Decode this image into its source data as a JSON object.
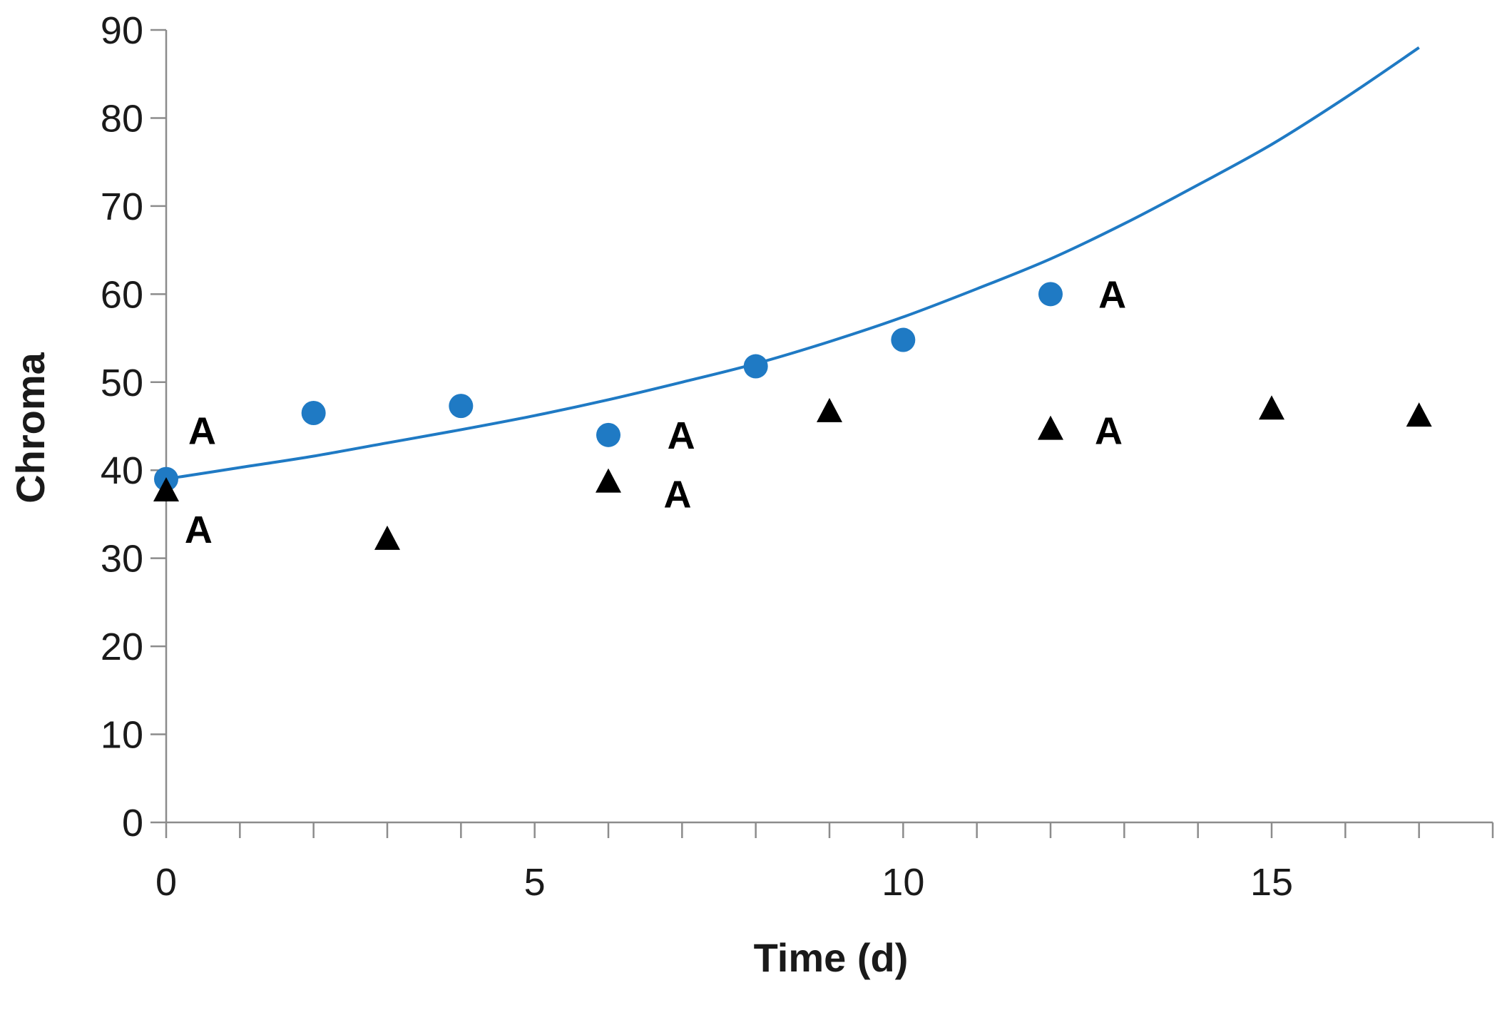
{
  "chart_data": {
    "type": "scatter",
    "title": "",
    "xlabel": "Time (d)",
    "ylabel": "Chroma",
    "xlim": [
      0,
      18
    ],
    "ylim": [
      0,
      90
    ],
    "x_ticks": [
      0,
      5,
      10,
      15
    ],
    "x_minor_step": 1,
    "y_ticks": [
      0,
      10,
      20,
      30,
      40,
      50,
      60,
      70,
      80,
      90
    ],
    "grid": false,
    "series": [
      {
        "name": "circles",
        "marker": "circle",
        "color": "#1f7ac4",
        "x": [
          0,
          2,
          4,
          6,
          8,
          10,
          12
        ],
        "y": [
          39,
          46.5,
          47.3,
          44,
          51.8,
          54.8,
          60
        ]
      },
      {
        "name": "triangles",
        "marker": "triangle",
        "color": "#000000",
        "x": [
          0,
          3,
          6,
          9,
          12,
          15,
          17
        ],
        "y": [
          37.5,
          32,
          38.5,
          46.5,
          44.5,
          46.8,
          46
        ]
      },
      {
        "name": "fit",
        "type": "line",
        "color": "#1f7ac4",
        "x": [
          0,
          1,
          2,
          3,
          4,
          5,
          6,
          7,
          8,
          9,
          10,
          11,
          12,
          13,
          14,
          15,
          16,
          17
        ],
        "y": [
          39,
          40.3,
          41.6,
          43.1,
          44.6,
          46.2,
          48,
          50,
          52.1,
          54.6,
          57.4,
          60.6,
          64,
          68,
          72.4,
          77,
          82.3,
          88
        ]
      }
    ],
    "annotations": [
      {
        "text": "A",
        "x": 0.3,
        "y": 44.5
      },
      {
        "text": "A",
        "x": 0.25,
        "y": 33.3
      },
      {
        "text": "A",
        "x": 6.8,
        "y": 44
      },
      {
        "text": "A",
        "x": 6.75,
        "y": 37.3
      },
      {
        "text": "A",
        "x": 12.65,
        "y": 60
      },
      {
        "text": "A",
        "x": 12.6,
        "y": 44.5
      }
    ]
  }
}
